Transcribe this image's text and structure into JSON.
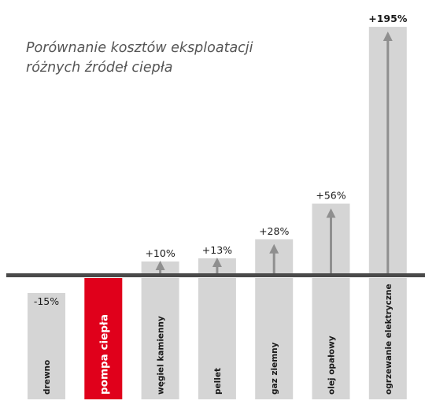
{
  "chart_data": {
    "type": "bar",
    "title_lines": [
      "Porównanie kosztów eksploatacji",
      "różnych źródeł ciepła"
    ],
    "categories": [
      "drewno",
      "pompa ciepła",
      "węgiel kamienny",
      "pellet",
      "gaz ziemny",
      "olej opałowy",
      "ogrzewanie elektryczne"
    ],
    "values": [
      -15,
      0,
      10,
      13,
      28,
      56,
      195
    ],
    "value_labels": [
      "-15%",
      "",
      "+10%",
      "+13%",
      "+28%",
      "+56%",
      "+195%"
    ],
    "highlight_index": 1,
    "baseline_value": 0,
    "ylim": [
      -100,
      210
    ],
    "grid": false,
    "legend": "none"
  },
  "colors": {
    "bar": "#d5d5d5",
    "highlight": "#e0001b",
    "baseline": "#4a4a4a",
    "arrow": "#8f8f8f",
    "text": "#1a1a1a",
    "title": "#555555",
    "highlight_text": "#ffffff"
  }
}
